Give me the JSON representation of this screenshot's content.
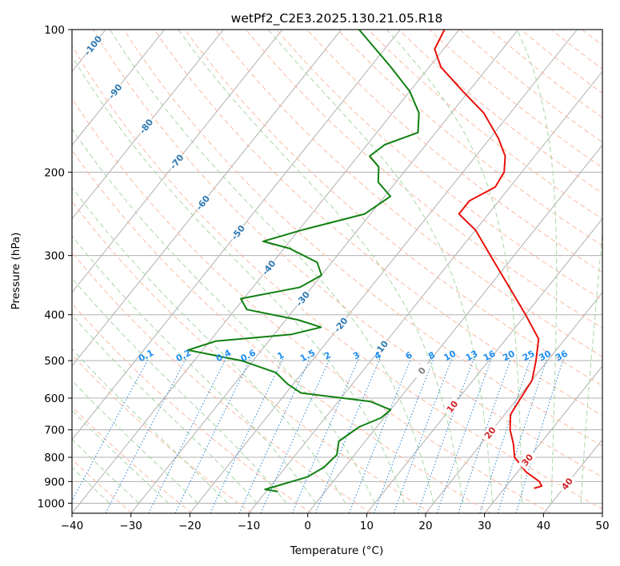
{
  "chart_data": {
    "type": "line",
    "subtype": "skew-T log-P diagram",
    "title": "wetPf2_C2E3.2025.130.21.05.R18",
    "xlabel": "Temperature (°C)",
    "ylabel": "Pressure (hPa)",
    "xlim": [
      -40,
      50
    ],
    "ylim": [
      1050,
      100
    ],
    "y_scale": "log",
    "grid": true,
    "x_ticks": [
      "−40",
      "−30",
      "−20",
      "−10",
      "0",
      "10",
      "20",
      "30",
      "40",
      "50"
    ],
    "y_ticks": [
      "100",
      "200",
      "300",
      "400",
      "500",
      "600",
      "700",
      "800",
      "900",
      "1000"
    ],
    "series": [
      {
        "role": "temperature",
        "color": "#e8120c",
        "points": [
          {
            "p": 930,
            "t": 35.0
          },
          {
            "p": 920,
            "t": 36.0
          },
          {
            "p": 900,
            "t": 35.0
          },
          {
            "p": 860,
            "t": 31.5
          },
          {
            "p": 800,
            "t": 27.5
          },
          {
            "p": 750,
            "t": 25.5
          },
          {
            "p": 700,
            "t": 23.0
          },
          {
            "p": 650,
            "t": 21.0
          },
          {
            "p": 600,
            "t": 20.5
          },
          {
            "p": 550,
            "t": 20.0
          },
          {
            "p": 500,
            "t": 18.0
          },
          {
            "p": 450,
            "t": 15.5
          },
          {
            "p": 400,
            "t": 10.0
          },
          {
            "p": 350,
            "t": 3.5
          },
          {
            "p": 300,
            "t": -4.0
          },
          {
            "p": 265,
            "t": -10.0
          },
          {
            "p": 245,
            "t": -15.0
          },
          {
            "p": 230,
            "t": -15.0
          },
          {
            "p": 215,
            "t": -12.5
          },
          {
            "p": 200,
            "t": -13.0
          },
          {
            "p": 185,
            "t": -15.0
          },
          {
            "p": 170,
            "t": -18.5
          },
          {
            "p": 150,
            "t": -24.5
          },
          {
            "p": 135,
            "t": -31.0
          },
          {
            "p": 120,
            "t": -38.0
          },
          {
            "p": 110,
            "t": -41.5
          },
          {
            "p": 100,
            "t": -42.5
          }
        ]
      },
      {
        "role": "dewpoint",
        "color": "#108010",
        "points": [
          {
            "p": 945,
            "t": -8.0
          },
          {
            "p": 935,
            "t": -10.5
          },
          {
            "p": 920,
            "t": -9.0
          },
          {
            "p": 880,
            "t": -5.0
          },
          {
            "p": 840,
            "t": -3.5
          },
          {
            "p": 790,
            "t": -3.0
          },
          {
            "p": 740,
            "t": -4.5
          },
          {
            "p": 690,
            "t": -3.0
          },
          {
            "p": 660,
            "t": -0.5
          },
          {
            "p": 635,
            "t": 0.0
          },
          {
            "p": 610,
            "t": -4.5
          },
          {
            "p": 585,
            "t": -17.5
          },
          {
            "p": 560,
            "t": -21.0
          },
          {
            "p": 530,
            "t": -24.5
          },
          {
            "p": 500,
            "t": -32.0
          },
          {
            "p": 475,
            "t": -42.5
          },
          {
            "p": 455,
            "t": -39.0
          },
          {
            "p": 440,
            "t": -27.0
          },
          {
            "p": 425,
            "t": -23.0
          },
          {
            "p": 410,
            "t": -28.0
          },
          {
            "p": 390,
            "t": -38.0
          },
          {
            "p": 370,
            "t": -40.5
          },
          {
            "p": 350,
            "t": -32.0
          },
          {
            "p": 330,
            "t": -30.0
          },
          {
            "p": 310,
            "t": -32.5
          },
          {
            "p": 290,
            "t": -39.0
          },
          {
            "p": 280,
            "t": -44.5
          },
          {
            "p": 265,
            "t": -39.5
          },
          {
            "p": 245,
            "t": -31.0
          },
          {
            "p": 225,
            "t": -29.0
          },
          {
            "p": 210,
            "t": -33.0
          },
          {
            "p": 195,
            "t": -35.0
          },
          {
            "p": 185,
            "t": -38.0
          },
          {
            "p": 175,
            "t": -37.0
          },
          {
            "p": 165,
            "t": -33.0
          },
          {
            "p": 150,
            "t": -35.5
          },
          {
            "p": 135,
            "t": -40.0
          },
          {
            "p": 120,
            "t": -46.5
          },
          {
            "p": 100,
            "t": -57.0
          }
        ]
      }
    ],
    "isotherm_labels": [
      "-100",
      "-90",
      "-80",
      "-70",
      "-60",
      "-50",
      "-40",
      "-30",
      "-20",
      "-10",
      "0",
      "10",
      "20",
      "30",
      "40"
    ],
    "mixing_ratio_labels": [
      "0.1",
      "0.2",
      "0.4",
      "0.6",
      "1",
      "1.5",
      "2",
      "3",
      "4",
      "6",
      "8",
      "10",
      "13",
      "16",
      "20",
      "25",
      "30",
      "36"
    ],
    "colors": {
      "grid": "#b0b0b0",
      "dry_adiabat": "#fcb9a2",
      "moist_adiabat": "#a8d6a4",
      "mixing_ratio": "#3a8fd6",
      "isotherm_label_cold": "#2e78b0",
      "isotherm_label_zero": "#808080",
      "isotherm_label_warm": "#d0262c",
      "mixing_ratio_label": "#1f8ff0",
      "frame": "#000000"
    }
  }
}
